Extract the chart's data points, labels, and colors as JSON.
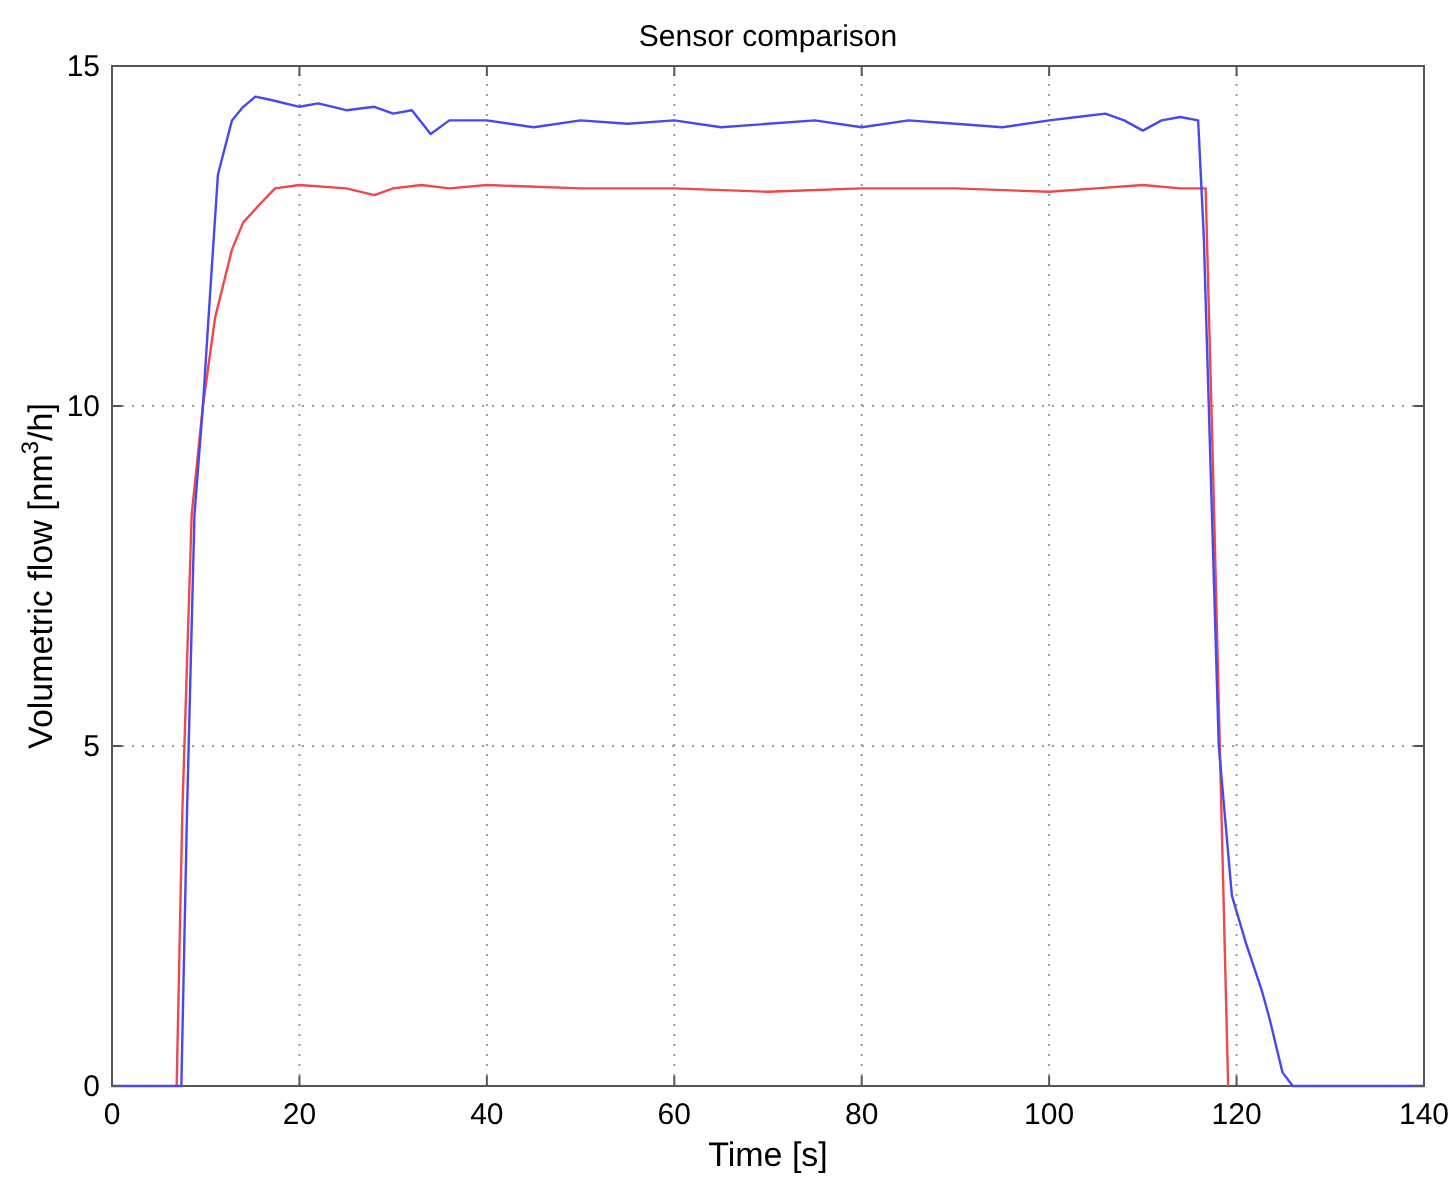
{
  "chart_data": {
    "type": "line",
    "title": "Sensor comparison",
    "xlabel": "Time [s]",
    "ylabel": "Volumetric flow [nm$^{3}$/h]",
    "xlim": [
      0,
      140
    ],
    "ylim": [
      0,
      15
    ],
    "xticks": [
      0,
      20,
      40,
      60,
      80,
      100,
      120,
      140
    ],
    "yticks": [
      0,
      5,
      10,
      15
    ],
    "grid": true,
    "line_style": "solid",
    "marker": "none",
    "series": [
      {
        "color": "#f04848",
        "x": [
          6.9,
          7.5,
          8.5,
          9.7,
          11,
          12.8,
          14,
          16,
          17.4,
          20,
          25,
          28,
          30,
          33,
          36,
          40,
          50,
          60,
          70,
          80,
          90,
          100,
          105,
          110,
          114,
          116.7,
          117.5,
          119.1
        ],
        "values": [
          0,
          4,
          8.4,
          10,
          11.3,
          12.3,
          12.7,
          13,
          13.2,
          13.25,
          13.2,
          13.1,
          13.2,
          13.25,
          13.2,
          13.25,
          13.2,
          13.2,
          13.15,
          13.2,
          13.2,
          13.15,
          13.2,
          13.25,
          13.2,
          13.2,
          9,
          0
        ]
      },
      {
        "color": "#4848f0",
        "x": [
          0,
          7.4,
          8,
          8.8,
          9.7,
          10.3,
          11.3,
          12.8,
          14,
          15.3,
          17,
          20,
          22,
          25,
          28,
          30,
          32,
          34,
          36,
          40,
          45,
          50,
          55,
          60,
          65,
          70,
          75,
          80,
          85,
          90,
          95,
          100,
          103,
          106,
          108,
          110,
          112,
          114,
          115.9,
          116.5,
          118.1,
          119.5,
          121,
          122.7,
          123.5,
          124.9,
          126,
          140
        ],
        "values": [
          0,
          0,
          4,
          8.4,
          10,
          11.3,
          13.4,
          14.2,
          14.4,
          14.55,
          14.5,
          14.4,
          14.45,
          14.35,
          14.4,
          14.3,
          14.35,
          14.0,
          14.2,
          14.2,
          14.1,
          14.2,
          14.15,
          14.2,
          14.1,
          14.15,
          14.2,
          14.1,
          14.2,
          14.15,
          14.1,
          14.2,
          14.25,
          14.3,
          14.2,
          14.05,
          14.2,
          14.25,
          14.2,
          12.5,
          5,
          2.8,
          2.1,
          1.4,
          1.0,
          0.2,
          0,
          0
        ]
      }
    ]
  }
}
